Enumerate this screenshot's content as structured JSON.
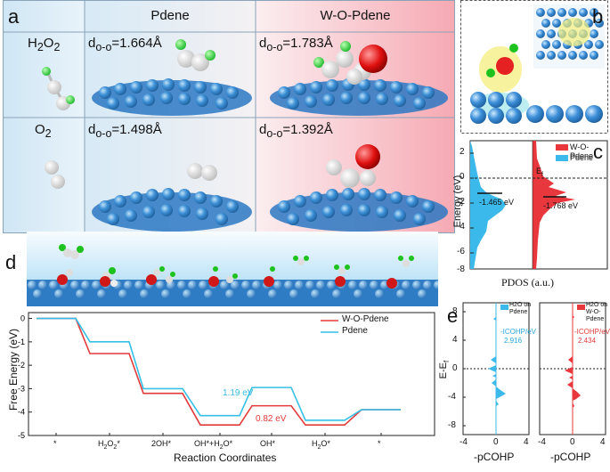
{
  "panel_labels": {
    "a": "a",
    "b": "b",
    "c": "c",
    "d": "d",
    "e": "e"
  },
  "panel_a": {
    "columns": [
      "Pdene",
      "W-O-Pdene"
    ],
    "rows": [
      {
        "mol_main": "H",
        "mol_sub": "2",
        "mol_main2": "O",
        "mol_sub2": "2",
        "pdene_prefix": "d",
        "pdene_sub": "o-o",
        "pdene_val": "=1.664Å",
        "wo_prefix": "d",
        "wo_sub": "o-o",
        "wo_val": "=1.783Å"
      },
      {
        "mol_main": "O",
        "mol_sub": "2",
        "mol_main2": "",
        "mol_sub2": "",
        "pdene_prefix": "d",
        "pdene_sub": "o-o",
        "pdene_val": "=1.498Å",
        "wo_prefix": "d",
        "wo_sub": "o-o",
        "wo_val": "=1.392Å"
      }
    ]
  },
  "panel_c": {
    "legend": [
      "W-O-Pdene",
      "Pdene"
    ],
    "ylabel": "Energy (eV)",
    "xlabel": "PDOS (a.u.)",
    "ef_label": "E",
    "ef_sub": "f",
    "y_ticks": [
      "2",
      "0",
      "-2",
      "-4",
      "-6",
      "-8"
    ],
    "center_pdene": "-1.465 eV",
    "center_wo": "-1.768 eV",
    "colors": {
      "wo": "#e8373d",
      "pdene": "#3bb9ea"
    }
  },
  "panel_d": {
    "ylabel": "Free Energy (eV)",
    "xlabel": "Reaction Coordinates",
    "legend": [
      "W-O-Pdene",
      "Pdene"
    ],
    "x_ticks": [
      "*",
      "H2O2*",
      "2OH*",
      "OH*+H2O*",
      "OH*",
      "H2O*",
      "*"
    ],
    "annot_pdene": "1.19 eV",
    "annot_wo": "0.82 eV"
  },
  "panel_e": {
    "ylabel_main": "E-E",
    "ylabel_sub": "f",
    "xlabel": "-pCOHP",
    "y_ticks": [
      "8",
      "4",
      "0",
      "-4",
      "-8"
    ],
    "x_ticks": [
      "-4",
      "0",
      "4"
    ],
    "left_legend_1": "H2O on",
    "left_legend_2": "Pdene",
    "left_icohp_label": "-ICOHP/eV",
    "left_icohp_value": "2.916",
    "right_legend_1": "H2O on",
    "right_legend_2": "W-O-Pdene",
    "right_icohp_label": "-ICOHP/eV",
    "right_icohp_value": "2.434"
  },
  "chart_data": [
    {
      "type": "line",
      "title": "",
      "xlabel": "Reaction Coordinates",
      "ylabel": "Free Energy (eV)",
      "categories": [
        "*",
        "H2O2*",
        "2OH*",
        "OH*+H2O*",
        "OH*",
        "H2O*",
        "*"
      ],
      "ylim": [
        -5,
        0.2
      ],
      "series": [
        {
          "name": "W-O-Pdene",
          "values": [
            0,
            -1.5,
            -3.2,
            -4.55,
            -3.73,
            -4.55,
            -3.9
          ]
        },
        {
          "name": "Pdene",
          "values": [
            0,
            -1.0,
            -3.0,
            -4.15,
            -2.95,
            -4.35,
            -3.9
          ]
        }
      ]
    }
  ]
}
